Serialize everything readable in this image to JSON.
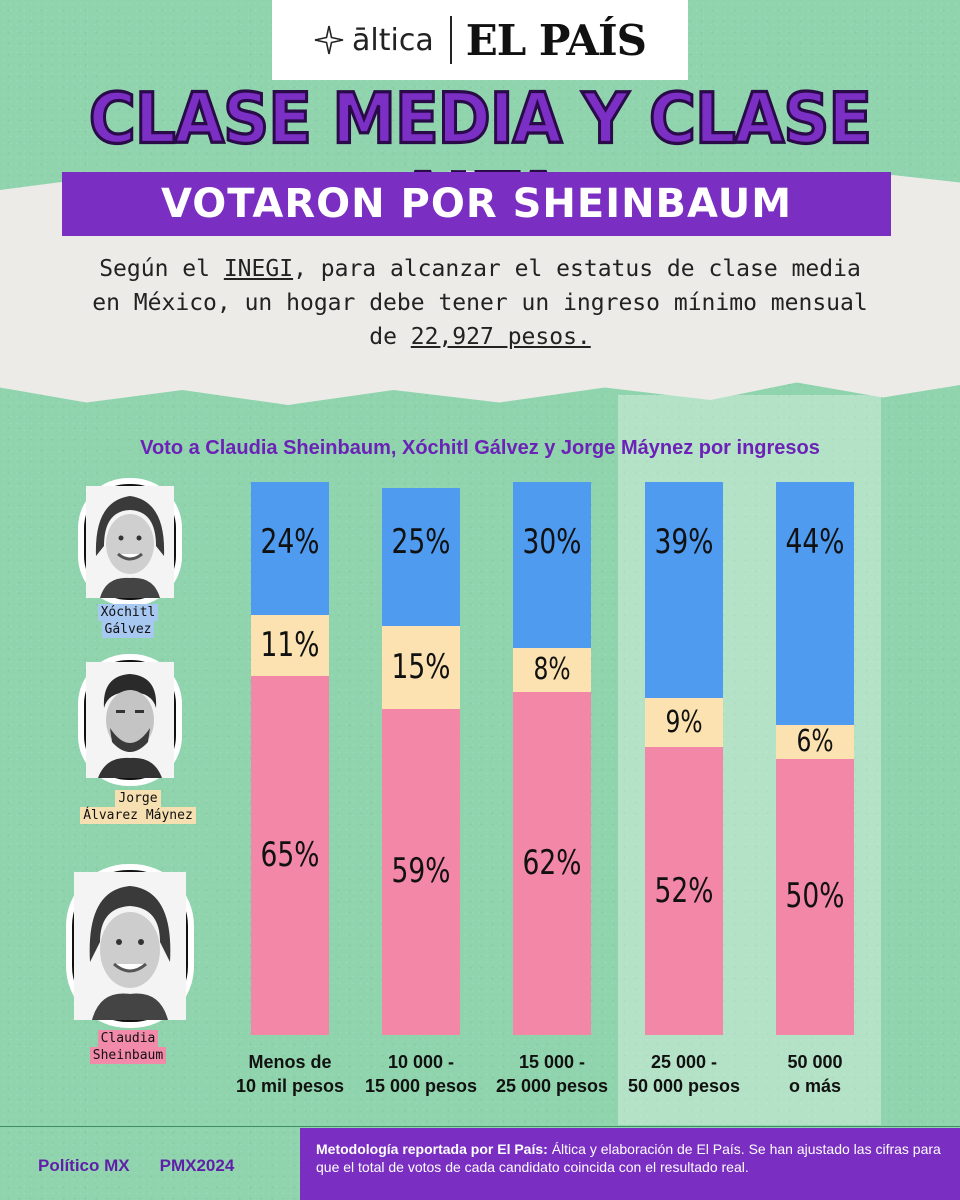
{
  "header": {
    "logo_altica": "āltica",
    "logo_elpais": "EL PAÍS"
  },
  "title": {
    "main": "CLASE MEDIA Y CLASE ALTA",
    "sub": "VOTARON POR SHEINBAUM"
  },
  "intro": {
    "text_before": "Según el ",
    "inegi": "INEGI",
    "text_middle": ", para alcanzar el estatus de clase media en México, un hogar debe tener un ingreso mínimo mensual de ",
    "amount": "22,927 pesos."
  },
  "candidates": [
    {
      "name_line1": "Xóchitl",
      "name_line2": "Gálvez",
      "color": "#a7c8f1",
      "icon": "portrait-galvez-icon"
    },
    {
      "name_line1": "Jorge",
      "name_line2": "Álvarez Máynez",
      "color": "#f6dfb1",
      "icon": "portrait-maynez-icon"
    },
    {
      "name_line1": "Claudia",
      "name_line2": "Sheinbaum",
      "color": "#f28aaa",
      "icon": "portrait-sheinbaum-icon"
    }
  ],
  "chart_data": {
    "type": "bar",
    "stacked": true,
    "title": "Voto a Claudia Sheinbaum, Xóchitl Gálvez y Jorge Máynez por ingresos",
    "categories": [
      {
        "line1": "Menos de",
        "line2": "10 mil pesos"
      },
      {
        "line1": "10 000 -",
        "line2": "15 000 pesos"
      },
      {
        "line1": "15 000 -",
        "line2": "25 000 pesos"
      },
      {
        "line1": "25 000 -",
        "line2": "50 000 pesos"
      },
      {
        "line1": "50 000",
        "line2": "o más"
      }
    ],
    "series": [
      {
        "name": "Claudia Sheinbaum",
        "color": "#f287a8",
        "values": [
          65,
          59,
          62,
          52,
          50
        ],
        "labels": [
          "65%",
          "59%",
          "62%",
          "52%",
          "50%"
        ]
      },
      {
        "name": "Jorge Álvarez Máynez",
        "color": "#fbe2b0",
        "values": [
          11,
          15,
          8,
          9,
          6
        ],
        "labels": [
          "11%",
          "15%",
          "8%",
          "9%",
          "6%"
        ]
      },
      {
        "name": "Xóchitl Gálvez",
        "color": "#4f9bf0",
        "values": [
          24,
          25,
          30,
          39,
          44
        ],
        "labels": [
          "24%",
          "25%",
          "30%",
          "39%",
          "44%"
        ]
      }
    ],
    "ylim": [
      0,
      100
    ],
    "highlighted_categories": [
      "25 000 - 50 000 pesos",
      "50 000 o más"
    ]
  },
  "footer": {
    "politico": "Político MX",
    "pmx": "PMX2024",
    "note_bold": "Metodología reportada por El País:",
    "note_text": " Áltica y  elaboración de El País. Se han ajustado las cifras para que el total de votos de cada candidato coincida con el resultado real."
  },
  "colors": {
    "background": "#8fd4ad",
    "purple": "#7a2ec2",
    "paper": "#ecebe8"
  }
}
